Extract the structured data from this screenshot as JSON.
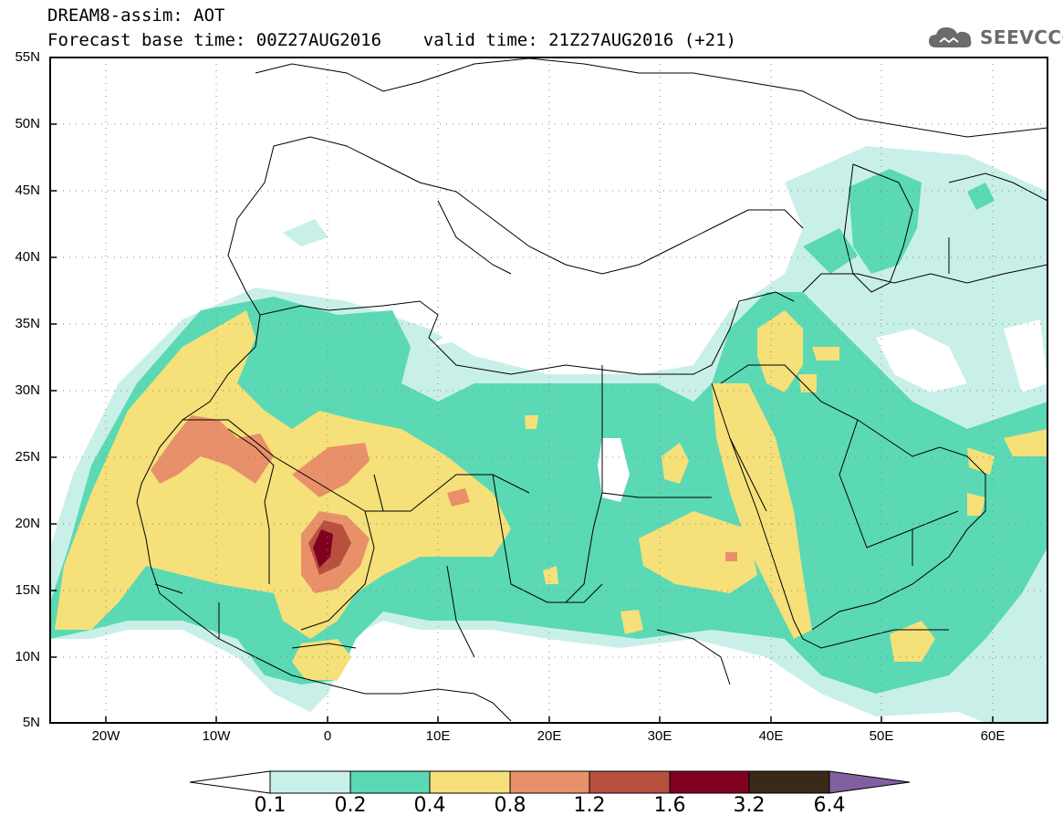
{
  "header": {
    "line1": "DREAM8-assim: AOT",
    "line2": "Forecast base time: 00Z27AUG2016    valid time: 21Z27AUG2016 (+21)"
  },
  "logo": {
    "text": "SEEVCCC",
    "icon": "cloud-icon"
  },
  "map": {
    "lat_labels": [
      "55N",
      "50N",
      "45N",
      "40N",
      "35N",
      "30N",
      "25N",
      "20N",
      "15N",
      "10N",
      "5N"
    ],
    "lon_labels": [
      "20W",
      "10W",
      "0",
      "10E",
      "20E",
      "30E",
      "40E",
      "50E",
      "60E"
    ],
    "lat_range": [
      5,
      55
    ],
    "lon_range": [
      -25,
      65
    ],
    "grid": "dotted"
  },
  "colorbar": {
    "labels": [
      "0.1",
      "0.2",
      "0.4",
      "0.8",
      "1.2",
      "1.6",
      "3.2",
      "6.4"
    ],
    "colors": [
      "#ffffff",
      "#c8f0e8",
      "#5ad9b4",
      "#f5e07a",
      "#e8906a",
      "#b85040",
      "#800020",
      "#3a2818",
      "#8060a0"
    ]
  }
}
